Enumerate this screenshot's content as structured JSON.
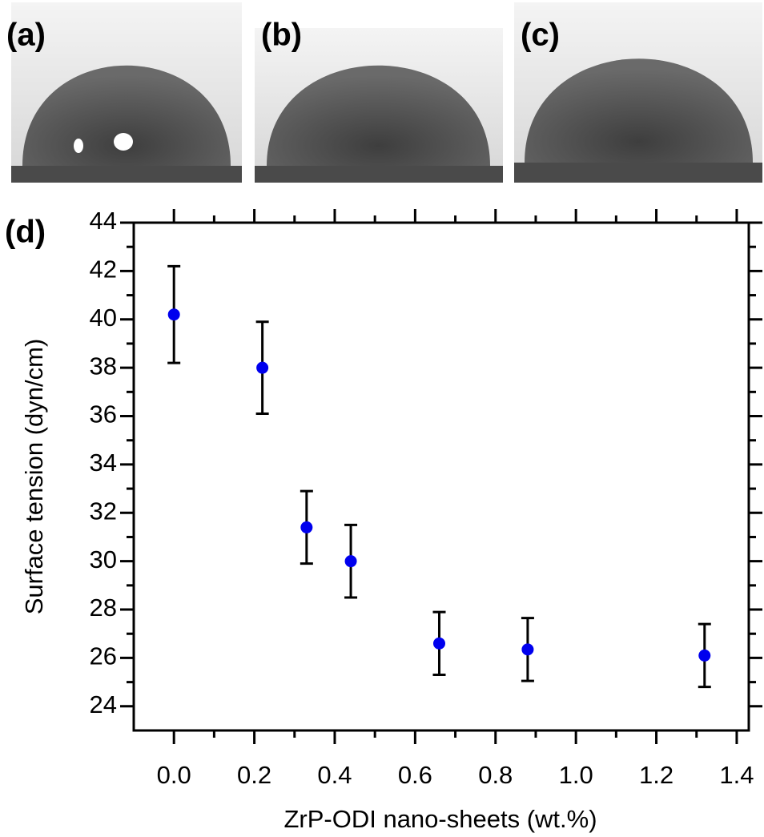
{
  "panels": [
    "(a)",
    "(b)",
    "(c)"
  ],
  "chart_data": {
    "type": "scatter",
    "label": "(d)",
    "x_label": "ZrP-ODI nano-sheets (wt.%)",
    "y_label": "Surface tension (dyn/cm)",
    "series": [
      {
        "color": "#0000ee",
        "x": [
          0,
          0.22,
          0.33,
          0.44,
          0.66,
          0.88,
          1.32
        ],
        "values": [
          40.2,
          38.0,
          31.4,
          30.0,
          26.6,
          26.35,
          26.1
        ],
        "errors": [
          2.0,
          1.9,
          1.5,
          1.5,
          1.3,
          1.3,
          1.3
        ]
      }
    ],
    "xlim": [
      -0.1,
      1.43
    ],
    "ylim": [
      23,
      44
    ],
    "xticks": [
      {
        "value": 0,
        "label": "0.0"
      },
      {
        "value": 0.2,
        "label": "0.2"
      },
      {
        "value": 0.4,
        "label": "0.4"
      },
      {
        "value": 0.6,
        "label": "0.6"
      },
      {
        "value": 0.8,
        "label": "0.8"
      },
      {
        "value": 1.0,
        "label": "1.0"
      },
      {
        "value": 1.2,
        "label": "1.2"
      },
      {
        "value": 1.4,
        "label": "1.4"
      }
    ],
    "yticks": [
      24,
      26,
      28,
      30,
      32,
      34,
      36,
      38,
      40,
      42,
      44
    ]
  }
}
